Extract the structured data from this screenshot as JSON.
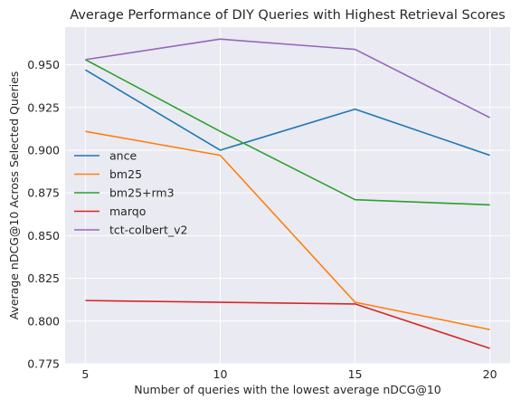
{
  "chart_data": {
    "type": "line",
    "title": "Average Performance of DIY Queries with Highest Retrieval Scores",
    "xlabel": "Number of queries with the lowest average nDCG@10",
    "ylabel": "Average nDCG@10 Across Selected Queries",
    "x": [
      5,
      10,
      15,
      20
    ],
    "x_ticks": [
      5,
      10,
      15,
      20
    ],
    "xlim": [
      4.25,
      20.75
    ],
    "ylim": [
      0.775,
      0.972
    ],
    "y_ticks": [
      0.775,
      0.8,
      0.825,
      0.85,
      0.875,
      0.9,
      0.925,
      0.95
    ],
    "y_tick_labels": [
      "0.775",
      "0.800",
      "0.825",
      "0.850",
      "0.875",
      "0.900",
      "0.925",
      "0.950"
    ],
    "grid": true,
    "legend_position": "center-left",
    "series": [
      {
        "name": "ance",
        "color": "#1f77b4",
        "values": [
          0.947,
          0.9,
          0.924,
          0.897
        ]
      },
      {
        "name": "bm25",
        "color": "#ff7f0e",
        "values": [
          0.911,
          0.897,
          0.811,
          0.795
        ]
      },
      {
        "name": "bm25+rm3",
        "color": "#2ca02c",
        "values": [
          0.953,
          0.911,
          0.871,
          0.868
        ]
      },
      {
        "name": "marqo",
        "color": "#d62728",
        "values": [
          0.812,
          0.811,
          0.81,
          0.784
        ]
      },
      {
        "name": "tct-colbert_v2",
        "color": "#9467bd",
        "values": [
          0.953,
          0.965,
          0.959,
          0.919
        ]
      }
    ]
  }
}
